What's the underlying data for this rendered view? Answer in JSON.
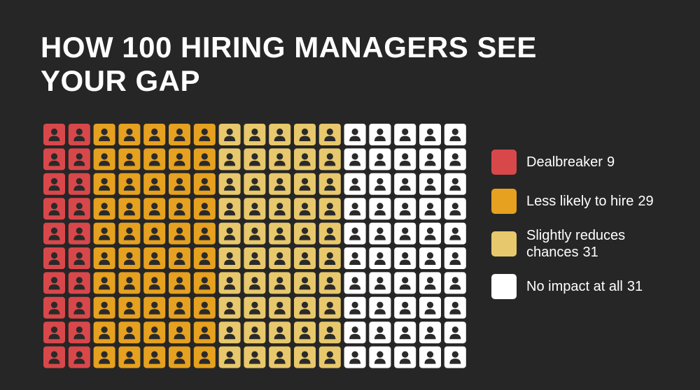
{
  "chart_data": {
    "type": "waffle",
    "title": "HOW 100 HIRING MANAGERS SEE YOUR GAP",
    "series": [
      {
        "name": "Dealbreaker",
        "color": "#d8484b",
        "value": 9
      },
      {
        "name": "Less likely to hire",
        "color": "#e5a11f",
        "value": 29
      },
      {
        "name": "Slightly reduces chances",
        "color": "#e8c86c",
        "value": 31
      },
      {
        "name": "No impact at all",
        "color": "#ffffff",
        "value": 31
      }
    ]
  }
}
